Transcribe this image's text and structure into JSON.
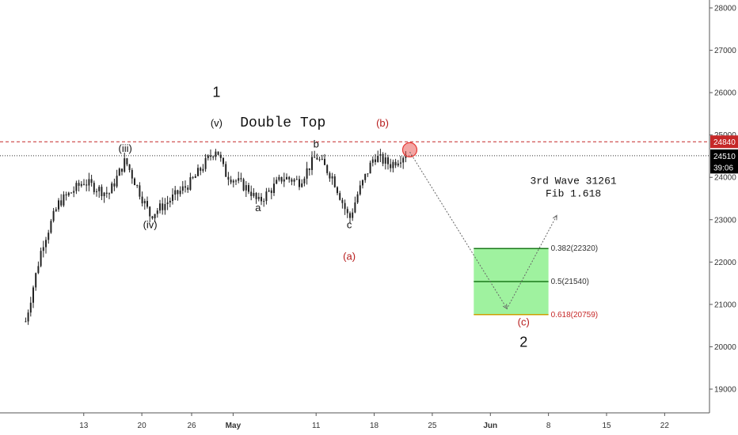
{
  "chart_data": {
    "type": "candlestick",
    "x_ticks": [
      "13",
      "20",
      "26",
      "May",
      "11",
      "18",
      "25",
      "Jun",
      "8",
      "15",
      "22"
    ],
    "y_ticks": [
      19000,
      20000,
      21000,
      22000,
      23000,
      24000,
      25000,
      26000,
      27000,
      28000
    ],
    "ylim": [
      18600,
      28300
    ],
    "price_path": [
      {
        "x": "Apr 06",
        "y": 20600
      },
      {
        "x": "Apr 08",
        "y": 22400
      },
      {
        "x": "Apr 10",
        "y": 23400
      },
      {
        "x": "Apr 13",
        "y": 23900
      },
      {
        "x": "Apr 16",
        "y": 23600
      },
      {
        "x": "Apr 18",
        "y": 24400
      },
      {
        "x": "Apr 21",
        "y": 23100
      },
      {
        "x": "Apr 23",
        "y": 23400
      },
      {
        "x": "Apr 26",
        "y": 23900
      },
      {
        "x": "Apr 29",
        "y": 24700
      },
      {
        "x": "Apr 30",
        "y": 24100
      },
      {
        "x": "May 03",
        "y": 23700
      },
      {
        "x": "May 04",
        "y": 23400
      },
      {
        "x": "May 07",
        "y": 24000
      },
      {
        "x": "May 09",
        "y": 23900
      },
      {
        "x": "May 11",
        "y": 24500
      },
      {
        "x": "May 13",
        "y": 24000
      },
      {
        "x": "May 15",
        "y": 23000
      },
      {
        "x": "May 16",
        "y": 23600
      },
      {
        "x": "May 18",
        "y": 24500
      },
      {
        "x": "May 20",
        "y": 24300
      },
      {
        "x": "May 22",
        "y": 24600
      }
    ],
    "projection": [
      {
        "x": "May 22",
        "y": 24600
      },
      {
        "x": "Jun 03",
        "y": 20900
      },
      {
        "x": "Jun 09",
        "y": 23100
      }
    ],
    "horizontal_lines": [
      {
        "value": 24840,
        "style": "dashed",
        "color": "#c62828"
      },
      {
        "value": 24510,
        "style": "dotted",
        "color": "#333333"
      }
    ],
    "price_labels": [
      {
        "text": "24840",
        "value": 24840,
        "color": "#c62828"
      },
      {
        "text": "24510",
        "value": 24510,
        "color": "#000000"
      },
      {
        "text": "39:06",
        "value": 24240,
        "color": "#000000"
      }
    ],
    "fib_zone": {
      "from_x": "May 30",
      "to_x": "Jun 08",
      "levels": [
        {
          "label": "0.382(22320)",
          "value": 22320,
          "color": "#333333"
        },
        {
          "label": "0.5(21540)",
          "value": 21540,
          "color": "#333333"
        },
        {
          "label": "0.618(20759)",
          "value": 20759,
          "color": "#c62828"
        }
      ],
      "fill": "#8ef08e"
    },
    "wave_labels": [
      {
        "text": "1",
        "x": "Apr 29",
        "y": 25900,
        "color": "#111111",
        "size": 18
      },
      {
        "text": "(v)",
        "x": "Apr 29",
        "y": 25200,
        "color": "#111111",
        "size": 13
      },
      {
        "text": "(iii)",
        "x": "Apr 18",
        "y": 24600,
        "color": "#111111",
        "size": 13
      },
      {
        "text": "(iv)",
        "x": "Apr 21",
        "y": 22800,
        "color": "#111111",
        "size": 13
      },
      {
        "text": "a",
        "x": "May 04",
        "y": 23200,
        "color": "#111111",
        "size": 13
      },
      {
        "text": "b",
        "x": "May 11",
        "y": 24700,
        "color": "#111111",
        "size": 13
      },
      {
        "text": "c",
        "x": "May 15",
        "y": 22800,
        "color": "#111111",
        "size": 13
      },
      {
        "text": "(a)",
        "x": "May 15",
        "y": 22050,
        "color": "#b71c1c",
        "size": 13
      },
      {
        "text": "(b)",
        "x": "May 19",
        "y": 25200,
        "color": "#b71c1c",
        "size": 13
      },
      {
        "text": "(c)",
        "x": "Jun 05",
        "y": 20500,
        "color": "#b71c1c",
        "size": 13
      },
      {
        "text": "2",
        "x": "Jun 05",
        "y": 20000,
        "color": "#111111",
        "size": 18
      }
    ],
    "annotations": [
      {
        "text": "Double Top",
        "x": "May 07",
        "y": 25200,
        "size": 18
      },
      {
        "text": "3rd Wave 31261",
        "x": "Jun 11",
        "y": 23850,
        "size": 13
      },
      {
        "text": "Fib 1.618",
        "x": "Jun 11",
        "y": 23550,
        "size": 13
      }
    ],
    "highlight_circle": {
      "x": "May 22",
      "y": 24650,
      "color": "#e53935"
    }
  }
}
